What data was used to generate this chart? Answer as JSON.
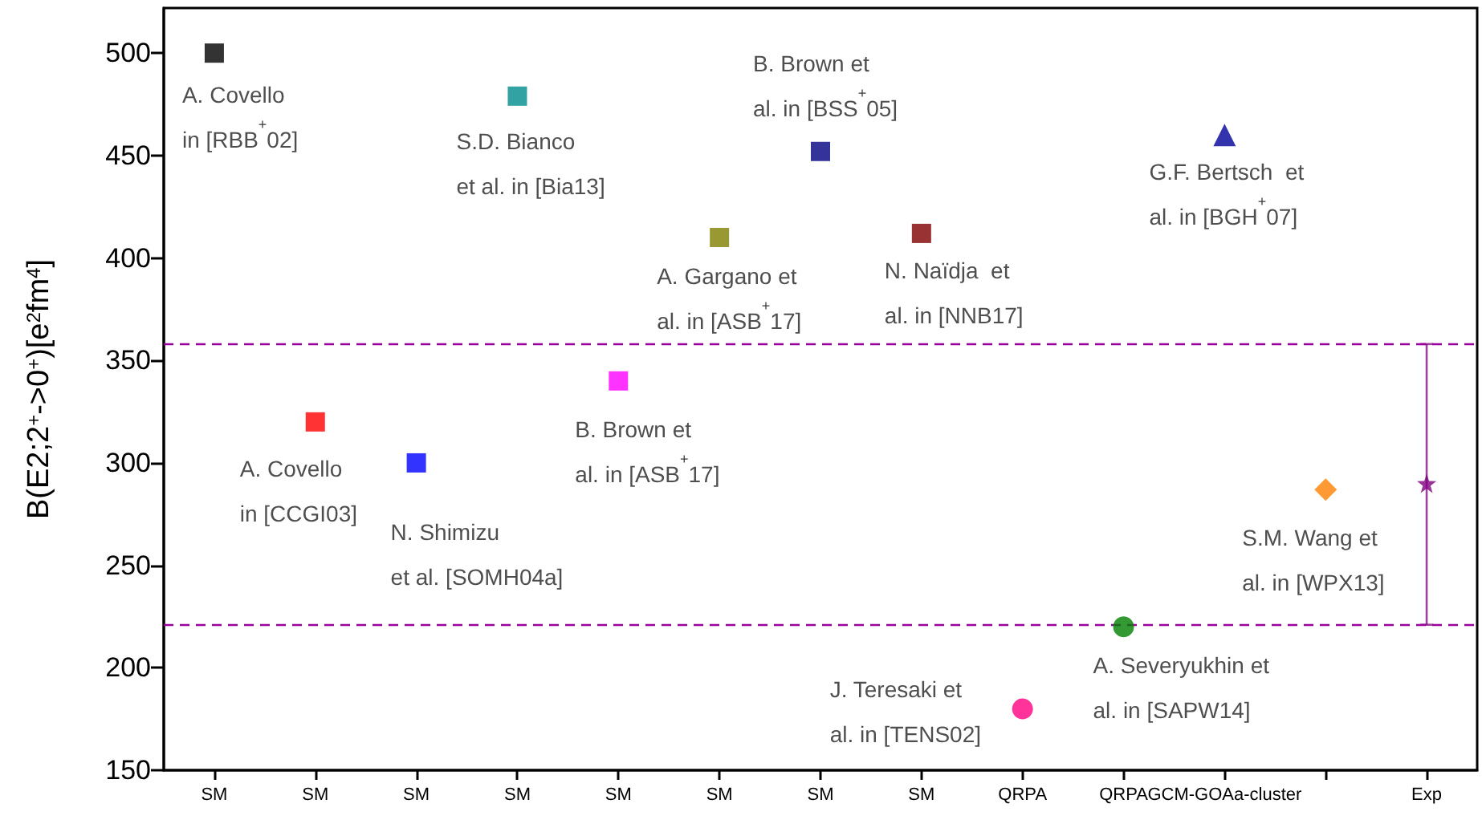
{
  "chart_data": {
    "type": "scatter",
    "ylabel": "B(E2;2$^{+}$->0$^{+}$)[e$^{2}$fm$^{4}$]",
    "categories": [
      "SM",
      "SM",
      "SM",
      "SM",
      "SM",
      "SM",
      "SM",
      "SM",
      "QRPA",
      "QRPA",
      "GCM-GOAa-cluster",
      null,
      "Exp"
    ],
    "ylim": [
      150,
      522
    ],
    "yticks": [
      150,
      200,
      250,
      300,
      350,
      400,
      450,
      500
    ],
    "grid": false,
    "ref_lines": [
      {
        "axis": "y",
        "value": 358,
        "color": "#990099",
        "line_style": "dashed"
      },
      {
        "axis": "y",
        "value": 221,
        "color": "#990099",
        "line_style": "dashed"
      }
    ],
    "series": [
      {
        "name": "A. Covello\nin [RBB$^{+}$02]",
        "color": "#000000",
        "marker": "square",
        "values": [
          500,
          null,
          null,
          null,
          null,
          null,
          null,
          null,
          null,
          null,
          null,
          null,
          null
        ]
      },
      {
        "name": "A. Covello\nin [CCGI03]",
        "color": "#ff0000",
        "marker": "square",
        "values": [
          null,
          320,
          null,
          null,
          null,
          null,
          null,
          null,
          null,
          null,
          null,
          null,
          null
        ]
      },
      {
        "name": "N. Shimizu\net al. [SOMH04a]",
        "color": "#0000ff",
        "marker": "square",
        "values": [
          null,
          null,
          300,
          null,
          null,
          null,
          null,
          null,
          null,
          null,
          null,
          null,
          null
        ]
      },
      {
        "name": "S.D. Bianco\net al. in [Bia13]",
        "color": "#008b8b",
        "marker": "square",
        "values": [
          null,
          null,
          null,
          479,
          null,
          null,
          null,
          null,
          null,
          null,
          null,
          null,
          null
        ]
      },
      {
        "name": "B. Brown et\nal. in [ASB$^{+}$17]",
        "color": "#ff00ff",
        "marker": "square",
        "values": [
          null,
          null,
          null,
          null,
          340,
          null,
          null,
          null,
          null,
          null,
          null,
          null,
          null
        ]
      },
      {
        "name": "A. Gargano et\nal. in [ASB$^{+}$17]",
        "color": "#808000",
        "marker": "square",
        "values": [
          null,
          null,
          null,
          null,
          null,
          410,
          null,
          null,
          null,
          null,
          null,
          null,
          null
        ]
      },
      {
        "name": "B. Brown et\nal. in [BSS$^{+}$05]",
        "color": "#000080",
        "marker": "square",
        "values": [
          null,
          null,
          null,
          null,
          null,
          null,
          452,
          null,
          null,
          null,
          null,
          null,
          null
        ]
      },
      {
        "name": "N. Naïdja  et\nal. in [NNB17]",
        "color": "#800000",
        "marker": "square",
        "values": [
          null,
          null,
          null,
          null,
          null,
          null,
          null,
          412,
          null,
          null,
          null,
          null,
          null
        ]
      },
      {
        "name": "J. Teresaki et\nal. in [TENS02]",
        "color": "#ff0080",
        "marker": "circle",
        "values": [
          null,
          null,
          null,
          null,
          null,
          null,
          null,
          null,
          180,
          null,
          null,
          null,
          null
        ]
      },
      {
        "name": "A. Severyukhin et\nal. in [SAPW14]",
        "color": "#008000",
        "marker": "circle",
        "values": [
          null,
          null,
          null,
          null,
          null,
          null,
          null,
          null,
          null,
          220,
          null,
          null,
          null
        ]
      },
      {
        "name": "G.F. Bertsch  et\nal. in [BGH$^{+}$07]",
        "color": "#000099",
        "marker": "triangle",
        "values": [
          null,
          null,
          null,
          null,
          null,
          null,
          null,
          null,
          null,
          null,
          460,
          null,
          null
        ]
      },
      {
        "name": "S.M. Wang et\nal. in [WPX13]",
        "color": "#ff8000",
        "marker": "diamond",
        "values": [
          null,
          null,
          null,
          null,
          null,
          null,
          null,
          null,
          null,
          null,
          null,
          287,
          null
        ]
      },
      {
        "color": "#800080",
        "marker": "star",
        "values": [
          null,
          null,
          null,
          null,
          null,
          null,
          null,
          null,
          null,
          null,
          null,
          null,
          290
        ],
        "errors": [
          null,
          null,
          null,
          null,
          null,
          null,
          null,
          null,
          null,
          null,
          null,
          null,
          [
            221,
            358
          ]
        ]
      }
    ]
  }
}
